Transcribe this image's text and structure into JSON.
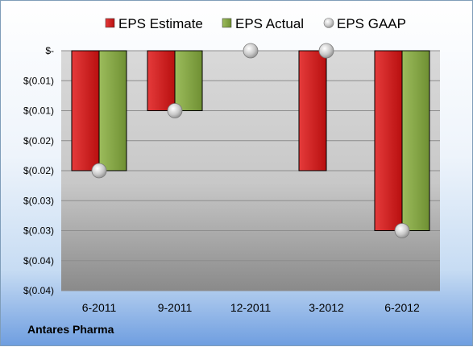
{
  "company_label": "Antares Pharma",
  "colors": {
    "estimate": "#d01818",
    "actual": "#7fa23f",
    "gaap": "#c8c8c8"
  },
  "chart_data": {
    "type": "bar",
    "categories": [
      "6-2011",
      "9-2011",
      "12-2011",
      "3-2012",
      "6-2012"
    ],
    "series": [
      {
        "name": "EPS Estimate",
        "kind": "bar",
        "values": [
          -0.02,
          -0.01,
          null,
          -0.02,
          -0.03
        ]
      },
      {
        "name": "EPS Actual",
        "kind": "bar",
        "values": [
          -0.02,
          -0.01,
          null,
          null,
          -0.03
        ]
      },
      {
        "name": "EPS GAAP",
        "kind": "marker",
        "values": [
          -0.02,
          -0.01,
          0.0,
          0.0,
          -0.03
        ]
      }
    ],
    "ylim": [
      -0.04,
      0
    ],
    "yticks": [
      0,
      -0.005,
      -0.01,
      -0.015,
      -0.02,
      -0.025,
      -0.03,
      -0.035,
      -0.04
    ],
    "ytick_labels": [
      "$-",
      "$(0.01)",
      "$(0.01)",
      "$(0.02)",
      "$(0.02)",
      "$(0.03)",
      "$(0.03)",
      "$(0.04)",
      "$(0.04)"
    ],
    "grid": true,
    "legend": "top"
  }
}
